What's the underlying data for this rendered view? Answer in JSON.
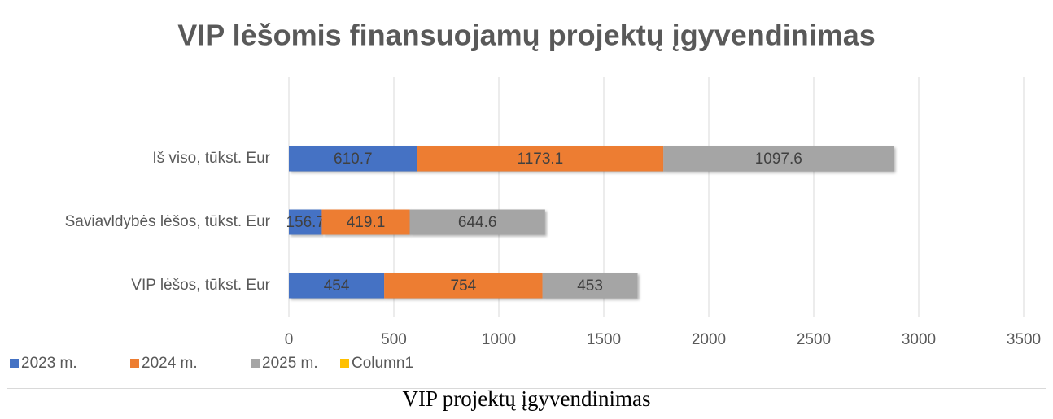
{
  "chart_data": {
    "type": "bar",
    "orientation": "horizontal",
    "stacked": true,
    "title": "VIP lėšomis finansuojamų projektų įgyvendinimas",
    "categories": [
      "Iš viso, tūkst. Eur",
      "Saviavldybės lėšos, tūkst. Eur",
      "VIP lėšos, tūkst. Eur"
    ],
    "series": [
      {
        "name": "2023 m.",
        "color": "#4472c4",
        "values": [
          610.7,
          156.7,
          454
        ]
      },
      {
        "name": "2024 m.",
        "color": "#ed7d31",
        "values": [
          1173.1,
          419.1,
          754
        ]
      },
      {
        "name": "2025 m.",
        "color": "#a5a5a5",
        "values": [
          1097.6,
          644.6,
          453
        ]
      },
      {
        "name": "Column1",
        "color": "#ffc000",
        "values": [
          null,
          null,
          null
        ]
      }
    ],
    "xlim": [
      0,
      3500
    ],
    "xticks": [
      0,
      500,
      1000,
      1500,
      2000,
      2500,
      3000,
      3500
    ],
    "grid": true,
    "legend": "bottom-left",
    "data_labels": true
  },
  "caption": "VIP projektų įgyvendinimas"
}
